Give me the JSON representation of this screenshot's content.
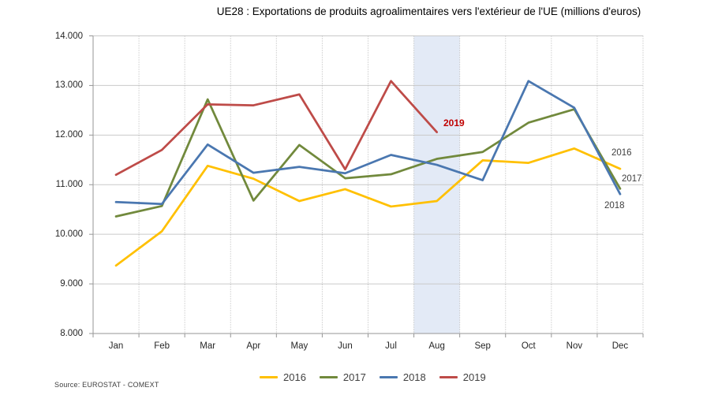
{
  "source": "Source: EUROSTAT - COMEXT",
  "chart_data": {
    "type": "line",
    "title": "UE28 : Exportations de produits agroalimentaires vers l'extérieur de l'UE (millions d'euros)",
    "categories": [
      "Jan",
      "Feb",
      "Mar",
      "Apr",
      "May",
      "Jun",
      "Jul",
      "Aug",
      "Sep",
      "Oct",
      "Nov",
      "Dec"
    ],
    "y_axis": {
      "min": 8000,
      "max": 14000,
      "step": 1000,
      "tick_labels": [
        "8.000",
        "9.000",
        "10.000",
        "11.000",
        "12.000",
        "13.000",
        "14.000"
      ]
    },
    "series": [
      {
        "name": "2016",
        "color": "#FFC000",
        "values": [
          9370,
          10060,
          11380,
          11120,
          10670,
          10910,
          10560,
          10670,
          11490,
          11440,
          11730,
          11320
        ]
      },
      {
        "name": "2017",
        "color": "#71893C",
        "values": [
          10360,
          10570,
          12720,
          10680,
          11800,
          11130,
          11210,
          11520,
          11660,
          12250,
          12520,
          10920
        ]
      },
      {
        "name": "2018",
        "color": "#4A77B0",
        "values": [
          10650,
          10610,
          11810,
          11240,
          11360,
          11230,
          11600,
          11400,
          11090,
          13090,
          12550,
          10810
        ]
      },
      {
        "name": "2019",
        "color": "#BE4B48",
        "values": [
          11200,
          11700,
          12620,
          12600,
          12820,
          11310,
          13090,
          12060,
          null,
          null,
          null,
          null
        ]
      }
    ],
    "highlight_band": {
      "category": "Aug",
      "color": "#E3EAF6"
    },
    "grid": true,
    "legend_position": "bottom",
    "grid_colors": {
      "horizontal": "#C9C9C9",
      "vertical_dotted": "#B3B3B3",
      "axis": "#969696"
    }
  }
}
